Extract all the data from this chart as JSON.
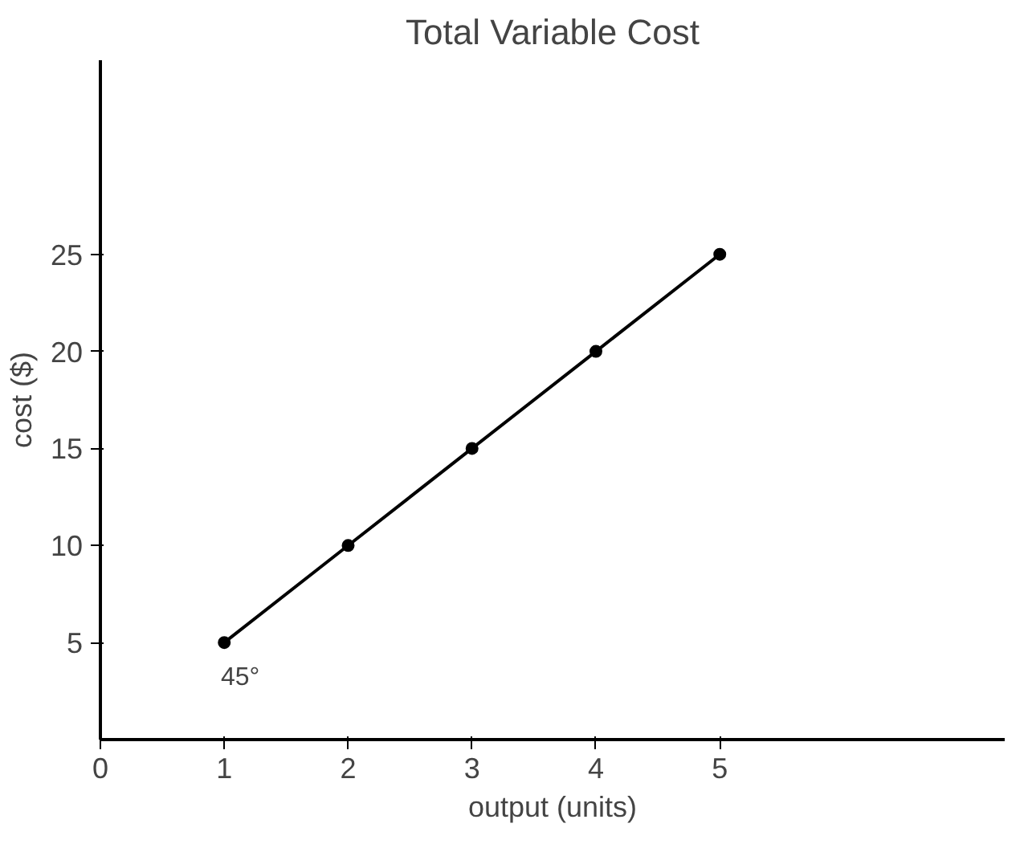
{
  "chart_data": {
    "type": "line",
    "title": "Total Variable Cost",
    "xlabel": "output (units)",
    "ylabel": "cost ($)",
    "x": [
      1,
      2,
      3,
      4,
      5
    ],
    "series": [
      {
        "color": "#000000",
        "values": [
          5,
          10,
          15,
          20,
          25
        ]
      }
    ],
    "xlim": [
      0,
      7.3
    ],
    "ylim": [
      0,
      35
    ],
    "xticks": [
      0,
      1,
      2,
      3,
      4,
      5
    ],
    "yticks": [
      5,
      10,
      15,
      20,
      25
    ],
    "annotations": [
      "45°"
    ],
    "marker": "circle",
    "line_style": "solid",
    "grid": false
  }
}
